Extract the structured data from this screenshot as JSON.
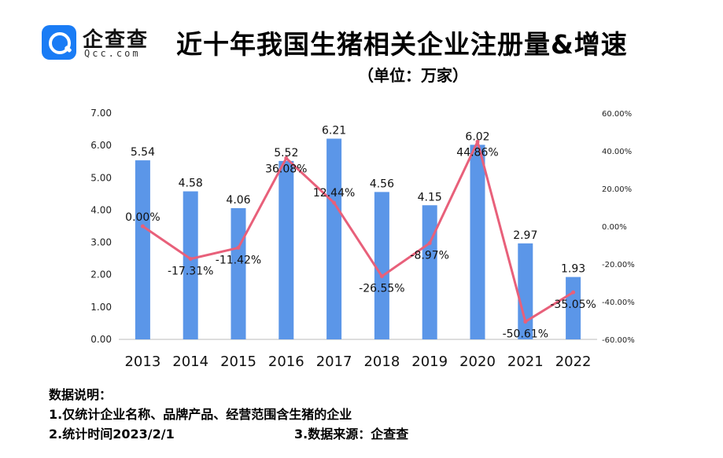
{
  "logo": {
    "name_cn": "企查查",
    "name_en": "Qcc.com"
  },
  "header": {
    "title": "近十年我国生猪相关企业注册量&增速",
    "subtitle": "（单位：万家）"
  },
  "chart_data": {
    "type": "bar",
    "title": "近十年我国生猪相关企业注册量&增速",
    "subtitle": "（单位：万家）",
    "categories": [
      "2013",
      "2014",
      "2015",
      "2016",
      "2017",
      "2018",
      "2019",
      "2020",
      "2021",
      "2022"
    ],
    "series": [
      {
        "type": "bar",
        "axis": "left",
        "values": [
          5.54,
          4.58,
          4.06,
          5.52,
          6.21,
          4.56,
          4.15,
          6.02,
          2.97,
          1.93
        ],
        "labels": [
          "5.54",
          "4.58",
          "4.06",
          "5.52",
          "6.21",
          "4.56",
          "4.15",
          "6.02",
          "2.97",
          "1.93"
        ],
        "color": "#5b96e8"
      },
      {
        "type": "line",
        "axis": "right",
        "values": [
          0.0,
          -17.31,
          -11.42,
          36.08,
          12.44,
          -26.55,
          -8.97,
          44.86,
          -50.61,
          -35.05
        ],
        "labels": [
          "0.00%",
          "-17.31%",
          "-11.42%",
          "36.08%",
          "12.44%",
          "-26.55%",
          "-8.97%",
          "44.86%",
          "-50.61%",
          "-35.05%"
        ],
        "color": "#e8607a"
      }
    ],
    "y_left": {
      "range": [
        0,
        7
      ],
      "ticks": [
        "0.00",
        "1.00",
        "2.00",
        "3.00",
        "4.00",
        "5.00",
        "6.00",
        "7.00"
      ]
    },
    "y_right": {
      "range": [
        -60,
        60
      ],
      "ticks": [
        "-60.00%",
        "-40.00%",
        "-20.00%",
        "0.00%",
        "20.00%",
        "40.00%",
        "60.00%"
      ]
    },
    "grid": false,
    "legend": "none"
  },
  "notes": {
    "heading": "数据说明：",
    "line1": "1.仅统计企业名称、品牌产品、经营范围含生猪的企业",
    "line2": "2.统计时间2023/2/1",
    "source": "3.数据来源：企查查"
  }
}
